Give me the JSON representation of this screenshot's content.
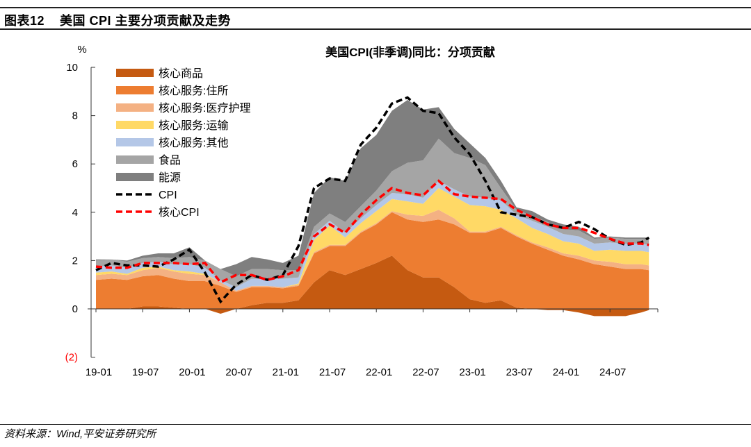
{
  "header": {
    "figure_no": "图表12",
    "title": "美国 CPI 主要分项贡献及走势"
  },
  "footer": {
    "source": "资料来源：Wind,平安证券研究所"
  },
  "chart_data": {
    "type": "area",
    "title": "美国CPI(非季调)同比：分项贡献",
    "ylabel": "%",
    "ylim": [
      -2,
      10
    ],
    "yticks": [
      10,
      8,
      6,
      4,
      2,
      0,
      -2
    ],
    "ytick_labels": [
      "10",
      "8",
      "6",
      "4",
      "2",
      "0",
      "(2)"
    ],
    "ytick_negative_color": "#ff0000",
    "xtick_labels": [
      "19-01",
      "19-07",
      "20-01",
      "20-07",
      "21-01",
      "21-07",
      "22-01",
      "22-07",
      "23-01",
      "23-07",
      "24-01",
      "24-07"
    ],
    "legend_position": "top-left",
    "grid": false,
    "x": [
      "19-01",
      "19-03",
      "19-05",
      "19-07",
      "19-09",
      "19-11",
      "20-01",
      "20-03",
      "20-05",
      "20-07",
      "20-09",
      "20-11",
      "21-01",
      "21-03",
      "21-05",
      "21-07",
      "21-09",
      "21-11",
      "22-01",
      "22-03",
      "22-05",
      "22-07",
      "22-09",
      "22-11",
      "23-01",
      "23-03",
      "23-05",
      "23-07",
      "23-09",
      "23-11",
      "24-01",
      "24-03",
      "24-05",
      "24-07",
      "24-09",
      "24-11",
      "24-12"
    ],
    "series": [
      {
        "name": "核心商品",
        "kind": "area",
        "color": "#c55a11",
        "values": [
          0,
          0,
          0,
          0.1,
          0.1,
          0.05,
          0,
          0,
          -0.2,
          0,
          0.15,
          0.25,
          0.25,
          0.35,
          1.1,
          1.6,
          1.4,
          1.65,
          1.9,
          2.2,
          1.6,
          1.3,
          1.3,
          0.9,
          0.4,
          0.25,
          0.35,
          0.05,
          0,
          -0.05,
          -0.05,
          -0.15,
          -0.3,
          -0.3,
          -0.3,
          -0.15,
          -0.05
        ]
      },
      {
        "name": "核心服务:住所",
        "kind": "area",
        "color": "#ed7d31",
        "values": [
          1.2,
          1.25,
          1.2,
          1.25,
          1.3,
          1.2,
          1.15,
          1.15,
          0.95,
          0.7,
          0.75,
          0.65,
          0.6,
          0.6,
          1.2,
          1.0,
          1.2,
          1.5,
          1.6,
          1.8,
          2.1,
          2.3,
          2.4,
          2.6,
          2.75,
          2.9,
          3.0,
          2.95,
          2.7,
          2.45,
          2.2,
          2.05,
          1.85,
          1.75,
          1.65,
          1.65,
          1.6
        ]
      },
      {
        "name": "核心服务:医疗护理",
        "kind": "area",
        "color": "#f4b183",
        "values": [
          0.2,
          0.2,
          0.2,
          0.25,
          0.3,
          0.3,
          0.3,
          0.25,
          0.15,
          0.05,
          0.05,
          0.05,
          0.05,
          0.05,
          0.05,
          0.05,
          0.05,
          0.05,
          0.05,
          0.05,
          0.2,
          0.25,
          0.4,
          0.25,
          0.05,
          0.05,
          0.05,
          0.05,
          0.05,
          0.1,
          0.1,
          0.15,
          0.15,
          0.2,
          0.2,
          0.2,
          0.2
        ]
      },
      {
        "name": "核心服务:运输",
        "kind": "area",
        "color": "#ffd966",
        "values": [
          0.1,
          0.1,
          0.05,
          0.1,
          0.05,
          0.05,
          0.1,
          0.05,
          0,
          0,
          0,
          0,
          0,
          0.05,
          0.5,
          0.8,
          0.3,
          0.35,
          0.5,
          0.5,
          0.55,
          0.5,
          0.9,
          0.9,
          1.1,
          1.05,
          0.7,
          0.7,
          0.6,
          0.55,
          0.5,
          0.5,
          0.4,
          0.5,
          0.55,
          0.55,
          0.55
        ]
      },
      {
        "name": "核心服务:其他",
        "kind": "area",
        "color": "#b4c7e7",
        "values": [
          0.25,
          0.25,
          0.25,
          0.2,
          0.2,
          0.25,
          0.3,
          0.25,
          0.1,
          0.15,
          0.3,
          0.3,
          0.35,
          0.25,
          0.25,
          0.2,
          0.2,
          0.2,
          0.25,
          0.25,
          0.3,
          0.25,
          0.3,
          0.3,
          0.35,
          0.35,
          0.4,
          0.15,
          0.3,
          0.3,
          0.3,
          0.3,
          0.3,
          0.3,
          0.3,
          0.3,
          0.3
        ]
      },
      {
        "name": "食品",
        "kind": "area",
        "color": "#a5a5a5",
        "values": [
          0.25,
          0.25,
          0.25,
          0.2,
          0.2,
          0.25,
          0.3,
          0.3,
          0.45,
          0.45,
          0.4,
          0.4,
          0.35,
          0.3,
          0.3,
          0.3,
          0.45,
          0.5,
          0.6,
          0.9,
          1.3,
          1.55,
          1.75,
          1.5,
          1.6,
          1.35,
          0.5,
          0.2,
          0.2,
          0.2,
          0.2,
          0.25,
          0.2,
          0.2,
          0.2,
          0.2,
          0.2
        ]
      },
      {
        "name": "能源",
        "kind": "area",
        "color": "#7f7f7f",
        "values": [
          0.05,
          0,
          0.05,
          0.1,
          0.15,
          0.2,
          0.4,
          0,
          0,
          0.5,
          0.5,
          0.4,
          0.3,
          0.6,
          1.4,
          1.5,
          1.7,
          2.4,
          2.3,
          2.5,
          2.6,
          2.1,
          1.3,
          1.0,
          0.6,
          0.3,
          0.3,
          0.1,
          0.2,
          0.1,
          0.2,
          0.15,
          0.05,
          0.05,
          0.05,
          0.05,
          0.1
        ]
      },
      {
        "name": "CPI",
        "kind": "line",
        "color": "#000000",
        "values": [
          1.6,
          1.9,
          1.8,
          1.8,
          1.75,
          2.05,
          2.45,
          1.5,
          0.3,
          1.0,
          1.4,
          1.2,
          1.4,
          2.6,
          5.0,
          5.4,
          5.3,
          6.8,
          7.5,
          8.5,
          8.75,
          8.2,
          8.1,
          7.1,
          6.4,
          5.3,
          4.0,
          3.9,
          3.8,
          3.5,
          3.35,
          3.6,
          3.3,
          2.9,
          2.65,
          2.75,
          2.95
        ]
      },
      {
        "name": "核心CPI",
        "kind": "line",
        "color": "#ff0000",
        "values": [
          1.75,
          1.7,
          1.7,
          1.9,
          1.9,
          1.9,
          1.85,
          1.9,
          1.1,
          1.4,
          1.4,
          1.2,
          1.35,
          1.6,
          3.0,
          3.5,
          3.15,
          3.9,
          4.5,
          5.0,
          4.8,
          4.7,
          5.3,
          4.75,
          4.65,
          4.6,
          4.55,
          4.1,
          3.8,
          3.5,
          3.35,
          3.35,
          3.15,
          2.9,
          2.7,
          2.7,
          2.65
        ]
      }
    ]
  }
}
